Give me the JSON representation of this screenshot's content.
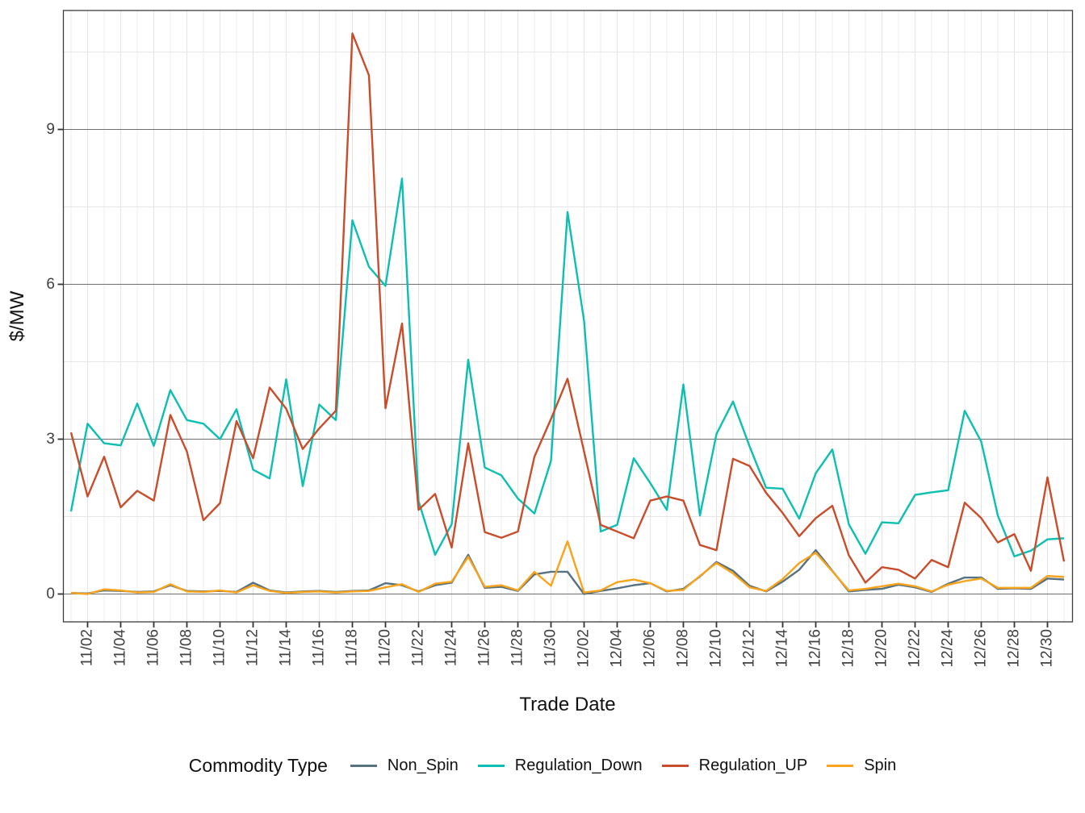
{
  "axes": {
    "y_title": "$/MW",
    "x_title": "Trade Date",
    "y_ticks": [
      0,
      3,
      6,
      9
    ],
    "y_minor": [
      1.5,
      4.5,
      7.5,
      10.5
    ],
    "x_tick_labels": [
      "11/02",
      "11/04",
      "11/06",
      "11/08",
      "11/10",
      "11/12",
      "11/14",
      "11/16",
      "11/18",
      "11/20",
      "11/22",
      "11/24",
      "11/26",
      "11/28",
      "11/30",
      "12/02",
      "12/04",
      "12/06",
      "12/08",
      "12/10",
      "12/12",
      "12/14",
      "12/16",
      "12/18",
      "12/20",
      "12/22",
      "12/24",
      "12/26",
      "12/28",
      "12/30"
    ]
  },
  "legend": {
    "title": "Commodity Type",
    "entries": [
      {
        "label": "Non_Spin",
        "color": "#56717F"
      },
      {
        "label": "Regulation_Down",
        "color": "#0CBFB2"
      },
      {
        "label": "Regulation_UP",
        "color": "#C94D2B"
      },
      {
        "label": "Spin",
        "color": "#F8A31A"
      }
    ]
  },
  "colors": {
    "major_grid": "#6F6F6F",
    "minor_grid": "#E7E7E7",
    "vertical_grid": "#E4E4E4",
    "panel_border": "#3C3C3C",
    "tick_mark": "#333333"
  },
  "chart_data": {
    "type": "line",
    "title": "",
    "xlabel": "Trade Date",
    "ylabel": "$/MW",
    "ylim": [
      -0.55,
      11.3
    ],
    "grid": true,
    "legend_position": "bottom",
    "x": [
      "11/01",
      "11/02",
      "11/03",
      "11/04",
      "11/05",
      "11/06",
      "11/07",
      "11/08",
      "11/09",
      "11/10",
      "11/11",
      "11/12",
      "11/13",
      "11/14",
      "11/15",
      "11/16",
      "11/17",
      "11/18",
      "11/19",
      "11/20",
      "11/21",
      "11/22",
      "11/23",
      "11/24",
      "11/25",
      "11/26",
      "11/27",
      "11/28",
      "11/29",
      "11/30",
      "12/01",
      "12/02",
      "12/03",
      "12/04",
      "12/05",
      "12/06",
      "12/07",
      "12/08",
      "12/09",
      "12/10",
      "12/11",
      "12/12",
      "12/13",
      "12/14",
      "12/15",
      "12/16",
      "12/17",
      "12/18",
      "12/19",
      "12/20",
      "12/21",
      "12/22",
      "12/23",
      "12/24",
      "12/25",
      "12/26",
      "12/27",
      "12/28",
      "12/29",
      "12/30",
      "12/31"
    ],
    "series": [
      {
        "name": "Non_Spin",
        "color": "#56717F",
        "values": [
          0.02,
          0.01,
          0.07,
          0.06,
          0.04,
          0.05,
          0.17,
          0.06,
          0.05,
          0.06,
          0.04,
          0.22,
          0.07,
          0.03,
          0.05,
          0.06,
          0.04,
          0.06,
          0.07,
          0.21,
          0.17,
          0.05,
          0.17,
          0.22,
          0.76,
          0.12,
          0.14,
          0.06,
          0.38,
          0.43,
          0.43,
          0.0,
          0.06,
          0.11,
          0.17,
          0.21,
          0.05,
          0.1,
          0.34,
          0.62,
          0.45,
          0.16,
          0.05,
          0.24,
          0.47,
          0.85,
          0.45,
          0.05,
          0.08,
          0.1,
          0.18,
          0.13,
          0.04,
          0.2,
          0.32,
          0.32,
          0.1,
          0.11,
          0.1,
          0.3,
          0.28
        ]
      },
      {
        "name": "Regulation_Down",
        "color": "#0CBFB2",
        "values": [
          1.6,
          3.3,
          2.92,
          2.88,
          3.69,
          2.87,
          3.95,
          3.37,
          3.3,
          3.0,
          3.58,
          2.41,
          2.24,
          4.16,
          2.09,
          3.67,
          3.37,
          7.24,
          6.34,
          5.97,
          8.05,
          1.8,
          0.76,
          1.35,
          4.54,
          2.45,
          2.3,
          1.85,
          1.56,
          2.58,
          7.4,
          5.29,
          1.21,
          1.34,
          2.63,
          2.15,
          1.63,
          4.06,
          1.52,
          3.1,
          3.73,
          2.86,
          2.06,
          2.04,
          1.46,
          2.34,
          2.8,
          1.35,
          0.78,
          1.39,
          1.37,
          1.92,
          1.97,
          2.01,
          3.55,
          2.95,
          1.52,
          0.73,
          0.84,
          1.06,
          1.08
        ]
      },
      {
        "name": "Regulation_UP",
        "color": "#C94D2B",
        "values": [
          3.13,
          1.89,
          2.66,
          1.68,
          2.0,
          1.81,
          3.47,
          2.76,
          1.43,
          1.76,
          3.35,
          2.63,
          4.0,
          3.59,
          2.81,
          3.21,
          3.55,
          10.86,
          10.05,
          3.6,
          5.24,
          1.63,
          1.94,
          0.9,
          2.92,
          1.2,
          1.09,
          1.21,
          2.66,
          3.39,
          4.17,
          2.76,
          1.34,
          1.21,
          1.08,
          1.81,
          1.89,
          1.81,
          0.95,
          0.85,
          2.62,
          2.48,
          1.96,
          1.57,
          1.12,
          1.47,
          1.71,
          0.75,
          0.22,
          0.52,
          0.47,
          0.3,
          0.66,
          0.52,
          1.77,
          1.47,
          1.0,
          1.16,
          0.45,
          2.26,
          0.63
        ]
      },
      {
        "name": "Spin",
        "color": "#F8A31A",
        "values": [
          0.02,
          0.0,
          0.09,
          0.07,
          0.03,
          0.04,
          0.19,
          0.05,
          0.04,
          0.07,
          0.03,
          0.17,
          0.06,
          0.02,
          0.04,
          0.05,
          0.03,
          0.05,
          0.06,
          0.13,
          0.19,
          0.04,
          0.2,
          0.24,
          0.72,
          0.14,
          0.17,
          0.07,
          0.43,
          0.16,
          1.02,
          0.03,
          0.07,
          0.23,
          0.28,
          0.21,
          0.06,
          0.08,
          0.35,
          0.6,
          0.4,
          0.13,
          0.06,
          0.29,
          0.6,
          0.8,
          0.44,
          0.07,
          0.1,
          0.15,
          0.2,
          0.15,
          0.05,
          0.18,
          0.25,
          0.3,
          0.12,
          0.12,
          0.12,
          0.35,
          0.33
        ]
      }
    ]
  }
}
